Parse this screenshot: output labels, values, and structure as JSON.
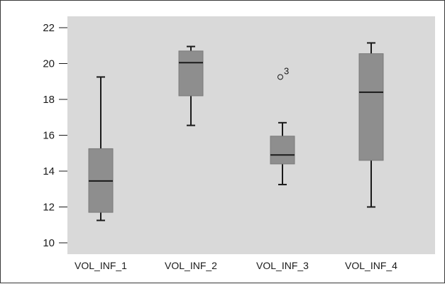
{
  "chart_data": {
    "type": "boxplot",
    "title": "",
    "xlabel": "",
    "ylabel": "",
    "ylim": [
      9.5,
      22.5
    ],
    "yticks": [
      10,
      12,
      14,
      16,
      18,
      20,
      22
    ],
    "grid": false,
    "legend": "none",
    "colors": {
      "plot_background": "#d9d9d9",
      "box_fill": "#8e8e8e",
      "median_line": "#1a1a1a",
      "whisker": "#1a1a1a"
    },
    "categories": [
      "VOL_INF_1",
      "VOL_INF_2",
      "VOL_INF_3",
      "VOL_INF_4"
    ],
    "boxes": [
      {
        "label": "VOL_INF_1",
        "whisker_low": 11.25,
        "q1": 11.7,
        "median": 13.45,
        "q3": 15.25,
        "whisker_high": 19.25,
        "outliers": []
      },
      {
        "label": "VOL_INF_2",
        "whisker_low": 16.55,
        "q1": 18.2,
        "median": 20.05,
        "q3": 20.7,
        "whisker_high": 20.95,
        "outliers": []
      },
      {
        "label": "VOL_INF_3",
        "whisker_low": 13.25,
        "q1": 14.4,
        "median": 14.9,
        "q3": 15.95,
        "whisker_high": 16.7,
        "outliers": [
          {
            "value": 19.25,
            "label": "3"
          }
        ]
      },
      {
        "label": "VOL_INF_4",
        "whisker_low": 12.0,
        "q1": 14.6,
        "median": 18.4,
        "q3": 20.55,
        "whisker_high": 21.15,
        "outliers": []
      }
    ]
  }
}
